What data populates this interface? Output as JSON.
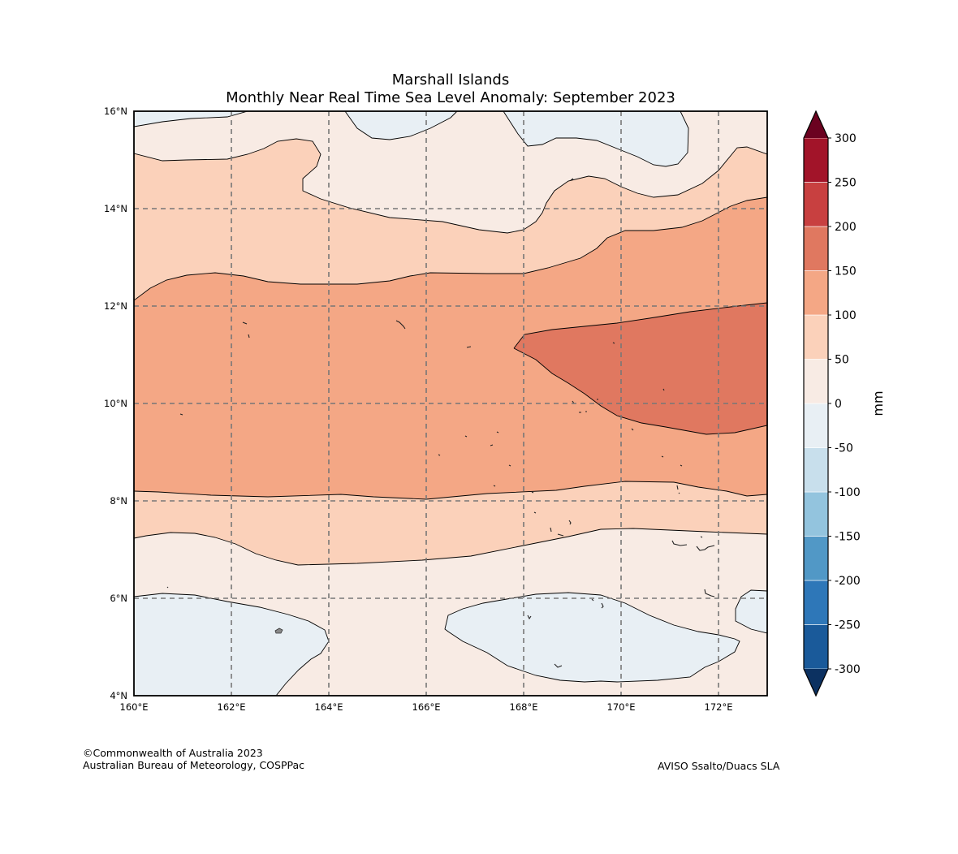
{
  "title": {
    "line1": "Marshall Islands",
    "line2": "Monthly Near Real Time Sea Level Anomaly: September 2023"
  },
  "map": {
    "region": "Marshall Islands",
    "lon_range": [
      160,
      173
    ],
    "lat_range": [
      4,
      16
    ],
    "x_ticks": [
      "160°E",
      "162°E",
      "164°E",
      "166°E",
      "168°E",
      "170°E",
      "172°E"
    ],
    "y_ticks": [
      "4°N",
      "6°N",
      "8°N",
      "10°N",
      "12°N",
      "14°N",
      "16°N"
    ],
    "gridlines": "dashed"
  },
  "colorbar": {
    "label": "mm",
    "tick_labels": [
      "300",
      "250",
      "200",
      "150",
      "100",
      "50",
      "0",
      "-50",
      "-100",
      "-150",
      "-200",
      "-250",
      "-300"
    ],
    "levels": [
      -300,
      -250,
      -200,
      -150,
      -100,
      -50,
      0,
      50,
      100,
      150,
      200,
      250,
      300
    ],
    "colors": [
      "#1a5a9a",
      "#2e77b8",
      "#5198c6",
      "#93c4de",
      "#c8dfec",
      "#e8eff4",
      "#f8ebe4",
      "#fbd1ba",
      "#f4a785",
      "#e07860",
      "#c84040",
      "#a21429"
    ],
    "extend_low_color": "#0c3161",
    "extend_high_color": "#6b0220"
  },
  "credits": {
    "left_line1": "©Commonwealth of Australia 2023",
    "left_line2": "Australian Bureau of Meteorology, COSPPac",
    "right": "AVISO Ssalto/Duacs SLA"
  }
}
